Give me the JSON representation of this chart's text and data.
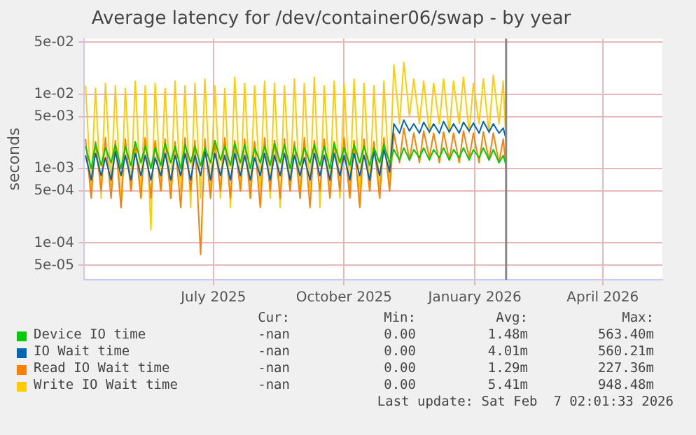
{
  "chart_data": {
    "type": "line",
    "title": "Average latency for /dev/container06/swap - by year",
    "ylabel": "seconds",
    "x": [
      "2025-04-17",
      "2025-04-21",
      "2025-04-24",
      "2025-04-28",
      "2025-05-01",
      "2025-05-05",
      "2025-05-08",
      "2025-05-12",
      "2025-05-15",
      "2025-05-19",
      "2025-05-22",
      "2025-05-26",
      "2025-05-29",
      "2025-06-02",
      "2025-06-05",
      "2025-06-09",
      "2025-06-12",
      "2025-06-16",
      "2025-06-19",
      "2025-06-23",
      "2025-06-26",
      "2025-06-30",
      "2025-07-03",
      "2025-07-07",
      "2025-07-10",
      "2025-07-14",
      "2025-07-17",
      "2025-07-21",
      "2025-07-24",
      "2025-07-28",
      "2025-07-31",
      "2025-08-04",
      "2025-08-07",
      "2025-08-11",
      "2025-08-14",
      "2025-08-18",
      "2025-08-21",
      "2025-08-25",
      "2025-08-28",
      "2025-09-01",
      "2025-09-04",
      "2025-09-08",
      "2025-09-11",
      "2025-09-15",
      "2025-09-18",
      "2025-09-22",
      "2025-09-25",
      "2025-09-29",
      "2025-10-02",
      "2025-10-06",
      "2025-10-09",
      "2025-10-13",
      "2025-10-16",
      "2025-10-20",
      "2025-10-23",
      "2025-10-27",
      "2025-10-30",
      "2025-11-03",
      "2025-11-06",
      "2025-11-10",
      "2025-11-13",
      "2025-11-17",
      "2025-11-20",
      "2025-11-24",
      "2025-11-27",
      "2025-12-01",
      "2025-12-04",
      "2025-12-08",
      "2025-12-11",
      "2025-12-15",
      "2025-12-18",
      "2025-12-22",
      "2025-12-25",
      "2025-12-29",
      "2026-01-01",
      "2026-01-05",
      "2026-01-08",
      "2026-01-12",
      "2026-01-15",
      "2026-01-19",
      "2026-01-22",
      "2026-01-26",
      "2026-01-29",
      "2026-02-02",
      "2026-02-05",
      "2026-02-07"
    ],
    "series": [
      {
        "name": "Device IO time",
        "color": "#00cc00",
        "values": [
          0.002,
          0.001,
          0.0022,
          0.0011,
          0.0019,
          0.0012,
          0.0021,
          0.001,
          0.002,
          0.0011,
          0.0023,
          0.0012,
          0.002,
          0.001,
          0.0019,
          0.0011,
          0.0022,
          0.0012,
          0.002,
          0.001,
          0.0021,
          0.0012,
          0.002,
          0.0011,
          0.0019,
          0.0012,
          0.0024,
          0.0013,
          0.002,
          0.0011,
          0.0022,
          0.0012,
          0.0021,
          0.001,
          0.0019,
          0.0012,
          0.002,
          0.0011,
          0.0022,
          0.0012,
          0.0021,
          0.001,
          0.002,
          0.0011,
          0.0019,
          0.0012,
          0.0021,
          0.0011,
          0.002,
          0.001,
          0.0022,
          0.0012,
          0.0019,
          0.0011,
          0.0021,
          0.0012,
          0.002,
          0.0011,
          0.0019,
          0.0012,
          0.0021,
          0.0012,
          0.0018,
          0.0013,
          0.0019,
          0.0013,
          0.0018,
          0.0014,
          0.0019,
          0.0013,
          0.0018,
          0.0014,
          0.0019,
          0.0013,
          0.0018,
          0.0014,
          0.0019,
          0.0013,
          0.0018,
          0.0014,
          0.0019,
          0.0013,
          0.0018,
          0.0012,
          0.0015,
          0.0011
        ]
      },
      {
        "name": "IO Wait time",
        "color": "#0066b3",
        "values": [
          0.0015,
          0.0007,
          0.0016,
          0.0008,
          0.0014,
          0.0007,
          0.0017,
          0.0008,
          0.0015,
          0.0007,
          0.0016,
          0.0008,
          0.0015,
          0.0007,
          0.0014,
          0.0008,
          0.0016,
          0.0007,
          0.0015,
          0.0008,
          0.0016,
          0.0007,
          0.0015,
          0.0008,
          0.0017,
          0.0007,
          0.0016,
          0.0008,
          0.0015,
          0.0007,
          0.0016,
          0.0008,
          0.0015,
          0.0007,
          0.0014,
          0.0008,
          0.0016,
          0.0007,
          0.0015,
          0.0008,
          0.0016,
          0.0007,
          0.0015,
          0.0008,
          0.0014,
          0.0007,
          0.0016,
          0.0008,
          0.0015,
          0.0007,
          0.0016,
          0.0008,
          0.0015,
          0.0007,
          0.0016,
          0.0008,
          0.0015,
          0.0007,
          0.0017,
          0.0008,
          0.0018,
          0.0009,
          0.004,
          0.003,
          0.0045,
          0.0032,
          0.004,
          0.003,
          0.0042,
          0.0031,
          0.004,
          0.003,
          0.0043,
          0.0031,
          0.004,
          0.003,
          0.0042,
          0.0032,
          0.0041,
          0.003,
          0.0043,
          0.0031,
          0.004,
          0.003,
          0.0035,
          0.0025
        ]
      },
      {
        "name": "Read IO Wait time",
        "color": "#ff8000",
        "values": [
          0.0025,
          0.0004,
          0.0023,
          0.0005,
          0.0026,
          0.0004,
          0.0024,
          0.0003,
          0.0025,
          0.0005,
          0.0022,
          0.0004,
          0.0026,
          0.0004,
          0.0024,
          0.0005,
          0.0025,
          0.0004,
          0.0023,
          0.0003,
          0.0026,
          0.0005,
          0.0024,
          7e-05,
          0.0025,
          0.0004,
          0.0023,
          0.0005,
          0.0026,
          0.0004,
          0.0024,
          0.0005,
          0.0025,
          0.0004,
          0.0023,
          0.0003,
          0.0026,
          0.0005,
          0.0024,
          0.0004,
          0.0025,
          0.0005,
          0.0023,
          0.0004,
          0.0026,
          0.0003,
          0.0024,
          0.0005,
          0.0025,
          0.0004,
          0.0023,
          0.0005,
          0.0026,
          0.0004,
          0.0024,
          0.0003,
          0.0025,
          0.0005,
          0.0023,
          0.0004,
          0.0026,
          0.0005,
          0.003,
          0.0012,
          0.0035,
          0.0013,
          0.003,
          0.0012,
          0.0032,
          0.0014,
          0.003,
          0.0012,
          0.0031,
          0.0013,
          0.003,
          0.0012,
          0.0032,
          0.0014,
          0.003,
          0.0012,
          0.0031,
          0.0013,
          0.003,
          0.0012,
          0.0025,
          0.001
        ]
      },
      {
        "name": "Write IO Wait time",
        "color": "#ffcc00",
        "values": [
          0.013,
          0.0005,
          0.012,
          0.0004,
          0.014,
          0.0006,
          0.013,
          0.0003,
          0.012,
          0.0005,
          0.015,
          0.0004,
          0.013,
          0.00015,
          0.014,
          0.0005,
          0.012,
          0.0004,
          0.015,
          0.0005,
          0.013,
          0.0003,
          0.014,
          0.0004,
          0.016,
          0.0005,
          0.013,
          0.0004,
          0.012,
          0.0003,
          0.017,
          0.0005,
          0.014,
          0.0004,
          0.013,
          0.0005,
          0.015,
          0.0004,
          0.014,
          0.0003,
          0.013,
          0.0005,
          0.016,
          0.0004,
          0.014,
          0.0005,
          0.017,
          0.0003,
          0.013,
          0.0005,
          0.015,
          0.0004,
          0.014,
          0.0005,
          0.016,
          0.0004,
          0.014,
          0.0005,
          0.013,
          0.0004,
          0.015,
          0.0006,
          0.025,
          0.004,
          0.027,
          0.005,
          0.016,
          0.004,
          0.015,
          0.003,
          0.014,
          0.004,
          0.016,
          0.003,
          0.015,
          0.004,
          0.017,
          0.003,
          0.014,
          0.004,
          0.016,
          0.003,
          0.018,
          0.004,
          0.015,
          0.002
        ]
      }
    ],
    "xlim": [
      "2025-04-16",
      "2026-05-28"
    ],
    "xticks": [
      {
        "value": "2025-07-16",
        "label": "July 2025"
      },
      {
        "value": "2025-10-16",
        "label": "October 2025"
      },
      {
        "value": "2026-01-16",
        "label": "January 2026"
      },
      {
        "value": "2026-04-16",
        "label": "April 2026"
      }
    ],
    "ylim": [
      3.2e-05,
      0.056
    ],
    "yticks": [
      {
        "value": 5e-05,
        "label": "5e-05"
      },
      {
        "value": 0.0001,
        "label": "1e-04"
      },
      {
        "value": 0.0005,
        "label": "5e-04"
      },
      {
        "value": 0.001,
        "label": "1e-03"
      },
      {
        "value": 0.005,
        "label": "5e-03"
      },
      {
        "value": 0.01,
        "label": "1e-02"
      },
      {
        "value": 0.05,
        "label": "5e-02"
      }
    ],
    "log": "y",
    "grid": true,
    "legend": "bottom",
    "marker": "none",
    "line_style": "solid",
    "ref_lines": [
      {
        "axis": "x",
        "value": "2026-02-07",
        "color": "#888888"
      }
    ],
    "annotations": [
      "Cur:",
      "Min:",
      "Avg:",
      "Max:",
      "-nan",
      "0.00",
      "1.48m",
      "563.40m",
      "-nan",
      "0.00",
      "4.01m",
      "560.21m",
      "-nan",
      "0.00",
      "1.29m",
      "227.36m",
      "-nan",
      "0.00",
      "5.41m",
      "948.48m",
      "Last update: Sat Feb  7 02:01:33 2026"
    ]
  }
}
